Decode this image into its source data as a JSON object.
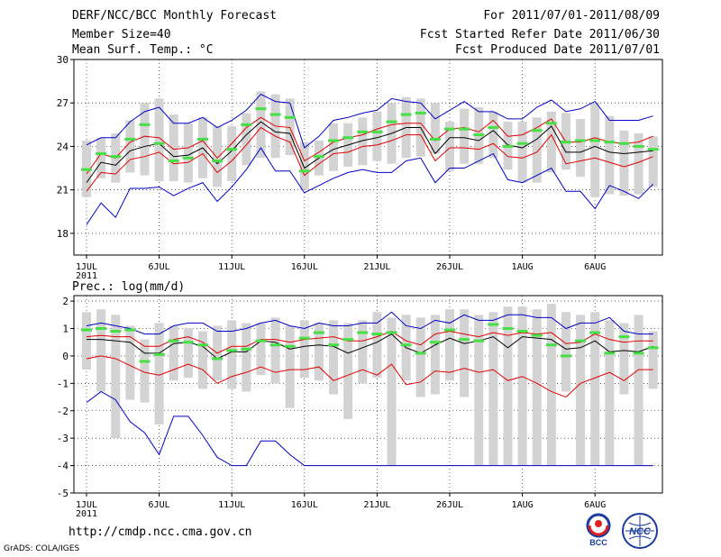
{
  "header": {
    "title": "DERF/NCC/BCC Monthly Forecast",
    "member": "Member Size=40",
    "variable": "Mean Surf. Temp.: °C",
    "period": "For 2011/07/01-2011/08/09",
    "started": "Fcst Started Refer Date 2011/06/30",
    "produced": "Fcst Produced Date 2011/07/01"
  },
  "footer": {
    "url": "http://cmdp.ncc.cma.gov.cn",
    "credit": "GrADS: COLA/IGES",
    "logo_left": "BCC",
    "logo_right": "NCC"
  },
  "colors": {
    "box": "#d3d3d3",
    "median": "#44e044",
    "mean": "#000000",
    "inner": "#e00000",
    "outer": "#0000c8"
  },
  "chart_data": [
    {
      "type": "box-ensemble",
      "title": "Mean Surf. Temp.: °C",
      "x": [
        1,
        2,
        3,
        4,
        5,
        6,
        7,
        8,
        9,
        10,
        11,
        12,
        13,
        14,
        15,
        16,
        17,
        18,
        19,
        20,
        21,
        22,
        23,
        24,
        25,
        26,
        27,
        28,
        29,
        30,
        31,
        32,
        33,
        34,
        35,
        36,
        37,
        38,
        39,
        40
      ],
      "xticks": [
        {
          "x": 1,
          "label": "1JUL",
          "sub": "2011"
        },
        {
          "x": 6,
          "label": "6JUL"
        },
        {
          "x": 11,
          "label": "11JUL"
        },
        {
          "x": 16,
          "label": "16JUL"
        },
        {
          "x": 21,
          "label": "21JUL"
        },
        {
          "x": 26,
          "label": "26JUL"
        },
        {
          "x": 31,
          "label": "1AUG"
        },
        {
          "x": 36,
          "label": "6AUG"
        }
      ],
      "ylim": [
        16.5,
        30
      ],
      "yticks": [
        18,
        21,
        24,
        27,
        30
      ],
      "box_low": [
        20.5,
        21.8,
        21.5,
        22.2,
        22.0,
        21.6,
        21.6,
        21.5,
        21.8,
        21.2,
        21.6,
        22.7,
        23.2,
        23.2,
        23.4,
        21.0,
        22.0,
        22.3,
        22.6,
        22.7,
        23.0,
        22.8,
        23.2,
        23.3,
        23.5,
        22.3,
        22.8,
        22.8,
        23.2,
        22.4,
        21.5,
        21.5,
        22.2,
        22.4,
        21.9,
        20.5,
        20.7,
        20.6,
        20.7,
        21.2
      ],
      "box_high": [
        24.4,
        24.6,
        24.9,
        25.8,
        27.0,
        27.3,
        26.2,
        25.6,
        26.0,
        25.4,
        25.4,
        26.3,
        27.8,
        27.6,
        27.3,
        24.3,
        24.4,
        25.6,
        25.6,
        26.0,
        26.4,
        27.0,
        27.4,
        27.3,
        27.0,
        25.7,
        26.6,
        26.7,
        26.4,
        25.7,
        25.7,
        26.0,
        26.4,
        26.3,
        25.9,
        27.0,
        26.1,
        25.1,
        24.9,
        24.7
      ],
      "median": [
        22.4,
        23.5,
        23.3,
        24.5,
        25.5,
        24.2,
        23.0,
        23.2,
        24.5,
        23.0,
        23.8,
        25.5,
        26.6,
        26.2,
        26.0,
        22.3,
        23.3,
        24.4,
        24.6,
        25.0,
        25.0,
        25.7,
        26.2,
        26.3,
        24.5,
        25.2,
        25.2,
        24.8,
        25.3,
        24.0,
        24.2,
        25.1,
        25.6,
        24.3,
        24.4,
        24.4,
        24.3,
        24.2,
        24.0,
        23.8
      ],
      "mean": [
        21.5,
        22.9,
        22.7,
        23.7,
        24.0,
        24.2,
        23.3,
        23.4,
        23.9,
        22.8,
        23.7,
        24.8,
        25.7,
        25.0,
        24.9,
        22.5,
        23.2,
        23.8,
        24.1,
        24.4,
        24.6,
        24.9,
        25.3,
        25.3,
        23.5,
        24.6,
        24.6,
        24.4,
        25.1,
        24.1,
        23.9,
        24.5,
        25.4,
        23.6,
        23.6,
        24.0,
        23.6,
        23.5,
        23.6,
        23.7
      ],
      "upper_std": [
        22.1,
        23.5,
        23.2,
        24.3,
        24.7,
        24.6,
        23.8,
        23.9,
        24.4,
        23.2,
        24.2,
        25.3,
        26.0,
        25.4,
        25.3,
        23.0,
        23.6,
        24.3,
        24.6,
        24.8,
        25.2,
        25.5,
        25.6,
        25.6,
        24.4,
        25.2,
        25.3,
        25.0,
        25.8,
        24.7,
        24.8,
        25.3,
        25.9,
        24.3,
        24.3,
        24.6,
        24.3,
        24.2,
        24.3,
        24.7
      ],
      "lower_std": [
        20.9,
        22.2,
        22.1,
        23.1,
        23.3,
        23.6,
        22.8,
        22.9,
        23.5,
        22.2,
        23.0,
        24.1,
        25.3,
        24.7,
        24.3,
        22.0,
        22.8,
        23.5,
        23.6,
        24.0,
        24.1,
        24.4,
        24.8,
        24.8,
        23.0,
        23.9,
        23.9,
        23.8,
        24.2,
        23.3,
        23.2,
        23.6,
        24.8,
        22.8,
        23.0,
        23.2,
        22.9,
        22.6,
        22.9,
        23.3
      ],
      "upper_env": [
        24.1,
        24.6,
        24.6,
        25.7,
        26.4,
        26.7,
        25.6,
        25.6,
        26.0,
        25.3,
        25.8,
        26.5,
        27.6,
        27.1,
        27.0,
        23.9,
        24.7,
        25.8,
        26.0,
        26.3,
        26.5,
        27.3,
        27.1,
        27.0,
        25.9,
        26.5,
        27.1,
        26.4,
        26.4,
        25.9,
        25.9,
        26.7,
        27.2,
        26.4,
        26.6,
        27.1,
        25.8,
        25.8,
        25.8,
        26.1
      ],
      "lower_env": [
        18.6,
        20.1,
        19.1,
        21.1,
        21.1,
        21.2,
        20.6,
        21.1,
        21.5,
        20.2,
        21.2,
        22.4,
        23.9,
        22.3,
        22.3,
        20.8,
        21.3,
        21.8,
        22.2,
        22.4,
        22.2,
        22.2,
        23.0,
        23.2,
        21.5,
        22.5,
        22.5,
        23.0,
        23.5,
        21.7,
        21.5,
        22.0,
        22.5,
        20.9,
        20.9,
        19.7,
        21.3,
        20.9,
        20.4,
        21.4
      ]
    },
    {
      "type": "box-ensemble",
      "title": "Prec.: log(mm/d)",
      "x": [
        1,
        2,
        3,
        4,
        5,
        6,
        7,
        8,
        9,
        10,
        11,
        12,
        13,
        14,
        15,
        16,
        17,
        18,
        19,
        20,
        21,
        22,
        23,
        24,
        25,
        26,
        27,
        28,
        29,
        30,
        31,
        32,
        33,
        34,
        35,
        36,
        37,
        38,
        39,
        40
      ],
      "xticks": [
        {
          "x": 1,
          "label": "1JUL",
          "sub": "2011"
        },
        {
          "x": 6,
          "label": "6JUL"
        },
        {
          "x": 11,
          "label": "11JUL"
        },
        {
          "x": 16,
          "label": "16JUL"
        },
        {
          "x": 21,
          "label": "21JUL"
        },
        {
          "x": 26,
          "label": "26JUL"
        },
        {
          "x": 31,
          "label": "1AUG"
        },
        {
          "x": 36,
          "label": "6AUG"
        }
      ],
      "ylim": [
        -5,
        2.2
      ],
      "yticks": [
        -5,
        -4,
        -3,
        -2,
        -1,
        0,
        1,
        2
      ],
      "box_low": [
        -0.5,
        -1.3,
        -3.0,
        -1.6,
        -1.7,
        -2.5,
        -0.9,
        -0.8,
        -1.2,
        -0.9,
        -1.2,
        -1.3,
        -0.7,
        -1.0,
        -1.9,
        -0.8,
        -0.9,
        -1.4,
        -2.3,
        -1.0,
        -0.8,
        -4.0,
        -0.9,
        -1.5,
        -1.4,
        -0.9,
        -1.5,
        -4.0,
        -4.0,
        -4.0,
        -4.0,
        -4.0,
        -4.0,
        -1.3,
        -4.0,
        -4.0,
        -4.0,
        -1.4,
        -4.0,
        -1.2
      ],
      "box_high": [
        1.6,
        1.7,
        1.5,
        1.1,
        0.6,
        1.2,
        1.1,
        1.0,
        0.9,
        1.1,
        1.3,
        1.2,
        1.2,
        1.4,
        1.1,
        1.3,
        1.2,
        1.3,
        1.2,
        1.3,
        1.6,
        1.4,
        1.5,
        1.4,
        1.5,
        1.7,
        1.7,
        1.5,
        1.6,
        1.8,
        1.8,
        1.7,
        1.9,
        1.6,
        1.5,
        1.6,
        1.3,
        1.2,
        1.5,
        0.9
      ],
      "median": [
        0.95,
        1.0,
        0.9,
        0.95,
        -0.2,
        0.05,
        0.55,
        0.5,
        0.4,
        -0.1,
        0.2,
        0.25,
        0.55,
        0.4,
        0.35,
        0.65,
        0.85,
        0.4,
        0.6,
        0.85,
        0.8,
        0.85,
        0.4,
        0.1,
        0.5,
        0.95,
        0.6,
        0.55,
        1.15,
        1.0,
        0.9,
        0.75,
        0.4,
        0.0,
        0.55,
        0.85,
        0.1,
        0.7,
        0.1,
        0.3
      ],
      "mean": [
        0.6,
        0.6,
        0.55,
        0.5,
        0.1,
        0.1,
        0.45,
        0.5,
        0.35,
        -0.1,
        0.15,
        0.15,
        0.55,
        0.5,
        0.25,
        0.35,
        0.4,
        0.35,
        0.1,
        0.3,
        0.5,
        0.8,
        0.3,
        0.1,
        0.4,
        0.65,
        0.45,
        0.55,
        0.7,
        0.3,
        0.7,
        0.65,
        0.6,
        0.25,
        0.3,
        0.55,
        0.15,
        0.2,
        0.15,
        0.35
      ],
      "upper_std": [
        0.7,
        0.75,
        0.7,
        0.7,
        0.35,
        0.35,
        0.6,
        0.7,
        0.5,
        0.1,
        0.35,
        0.35,
        0.6,
        0.6,
        0.5,
        0.6,
        0.65,
        0.7,
        0.55,
        0.55,
        0.7,
        0.9,
        0.55,
        0.4,
        0.8,
        0.9,
        0.8,
        0.7,
        0.85,
        0.75,
        0.85,
        0.8,
        0.85,
        0.45,
        0.5,
        0.8,
        0.6,
        0.5,
        0.55,
        0.55
      ],
      "lower_std": [
        -0.1,
        0.0,
        -0.1,
        -0.35,
        -0.6,
        -0.7,
        -0.5,
        -0.3,
        -0.5,
        -1.0,
        -0.75,
        -0.6,
        -0.4,
        -0.6,
        -0.5,
        -0.5,
        -0.4,
        -0.9,
        -0.7,
        -0.5,
        -0.7,
        -0.3,
        -1.05,
        -0.95,
        -0.55,
        -0.6,
        -0.45,
        -0.6,
        -0.5,
        -0.9,
        -0.75,
        -1.0,
        -1.3,
        -1.5,
        -1.0,
        -0.8,
        -0.6,
        -0.9,
        -0.5,
        -0.5
      ],
      "upper_env": [
        1.1,
        1.2,
        1.1,
        1.0,
        0.8,
        0.8,
        1.1,
        1.2,
        1.2,
        0.9,
        0.9,
        1.0,
        1.2,
        1.3,
        1.1,
        1.0,
        1.2,
        1.1,
        1.1,
        1.2,
        1.2,
        1.6,
        1.1,
        1.0,
        1.3,
        1.2,
        1.5,
        1.3,
        1.3,
        1.5,
        1.5,
        1.4,
        1.4,
        1.0,
        1.2,
        1.2,
        1.4,
        0.9,
        0.8,
        0.8
      ],
      "lower_env": [
        -1.7,
        -1.3,
        -1.6,
        -2.4,
        -2.8,
        -3.6,
        -2.2,
        -2.2,
        -2.9,
        -3.7,
        -4.0,
        -4.0,
        -3.1,
        -3.1,
        -3.6,
        -4.0,
        -4.0,
        -4.0,
        -4.0,
        -4.0,
        -4.0,
        -4.0,
        -4.0,
        -4.0,
        -4.0,
        -4.0,
        -4.0,
        -4.0,
        -4.0,
        -4.0,
        -4.0,
        -4.0,
        -4.0,
        -4.0,
        -4.0,
        -4.0,
        -4.0,
        -4.0,
        -4.0,
        -4.0
      ]
    }
  ]
}
